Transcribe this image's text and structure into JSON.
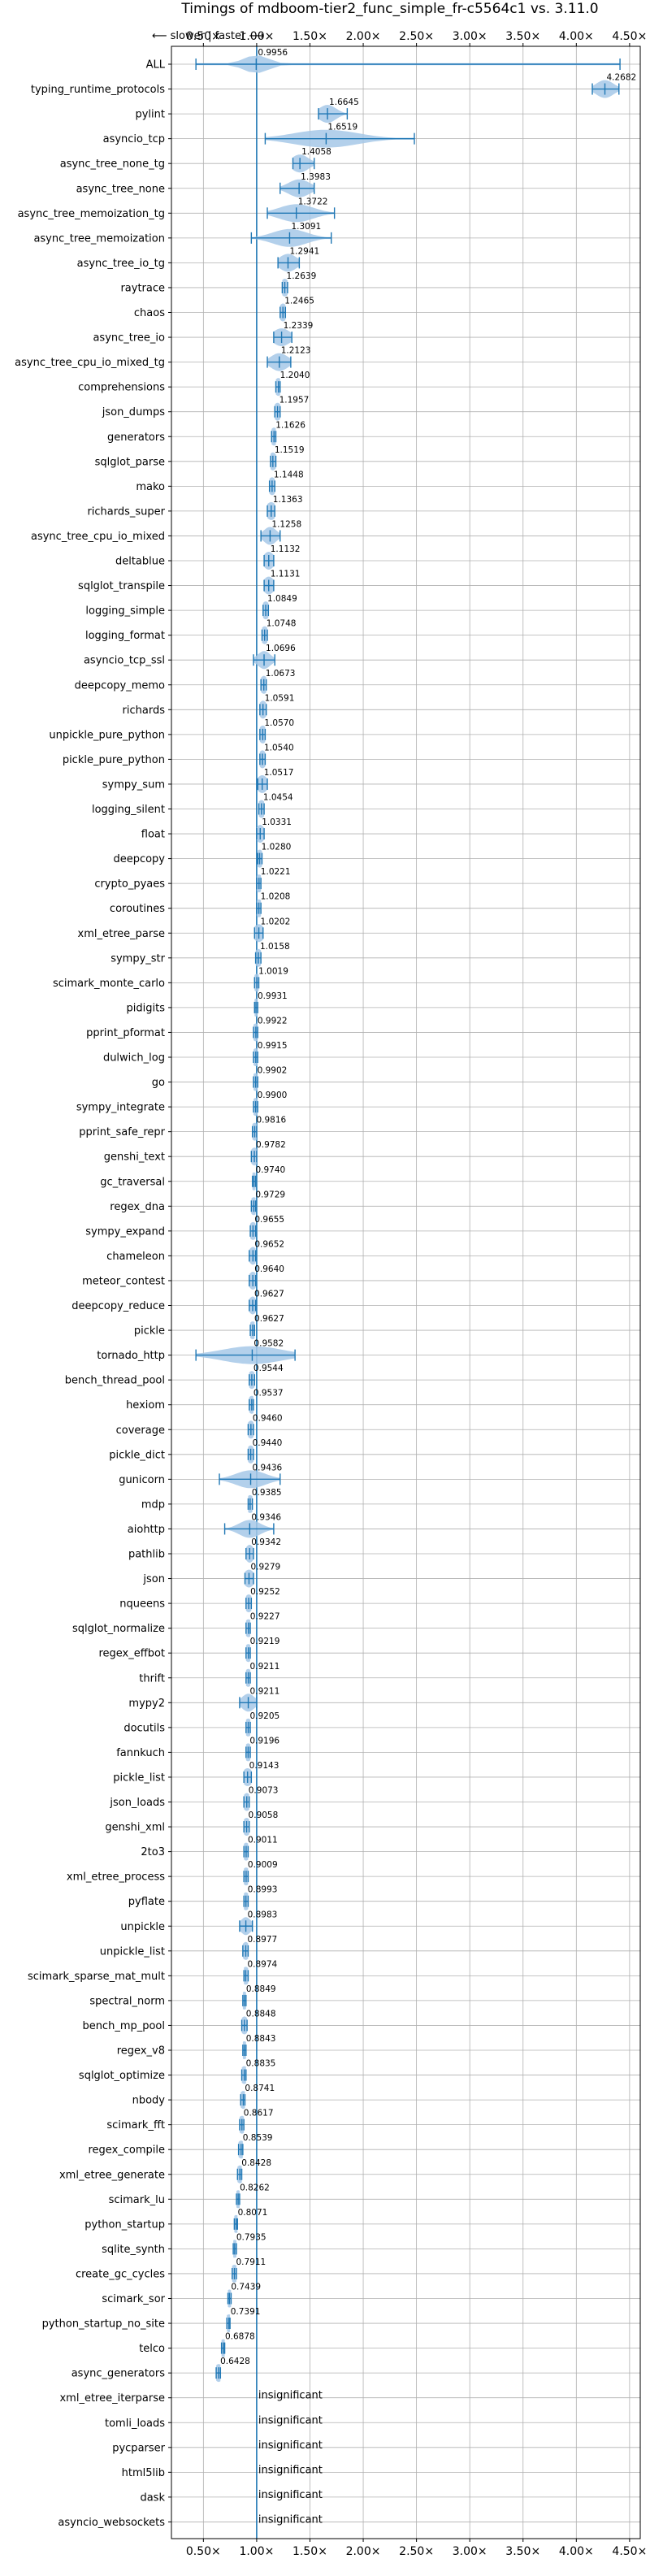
{
  "chart_data": {
    "type": "violin",
    "title": "Timings of mdboom-tier2_func_simple_fr-c5564c1 vs. 3.11.0",
    "direction_label": "⟵ slower | faster ⟶",
    "xlim": [
      0.2,
      4.6
    ],
    "x_ticks": [
      0.5,
      1.0,
      1.5,
      2.0,
      2.5,
      3.0,
      3.5,
      4.0,
      4.5
    ],
    "x_tick_labels": [
      "0.50×",
      "1.00×",
      "1.50×",
      "2.00×",
      "2.50×",
      "3.00×",
      "3.50×",
      "4.00×",
      "4.50×"
    ],
    "reference_line": 1.0,
    "colors": {
      "violin": "#a6c8e8",
      "accent": "#1f77b4",
      "grid": "#b0b0b0"
    },
    "insignificant_text": "insignificant",
    "benchmarks": [
      {
        "name": "ALL",
        "value": 0.9956,
        "label": "0.9956",
        "min": 0.43,
        "max": 4.41,
        "spread": 0.12
      },
      {
        "name": "typing_runtime_protocols",
        "value": 4.2682,
        "label": "4.2682",
        "min": 4.15,
        "max": 4.4,
        "spread": 0.08
      },
      {
        "name": "pylint",
        "value": 1.6645,
        "label": "1.6645",
        "min": 1.58,
        "max": 1.85,
        "spread": 0.08
      },
      {
        "name": "asyncio_tcp",
        "value": 1.6519,
        "label": "1.6519",
        "min": 1.08,
        "max": 2.48,
        "spread": 0.3
      },
      {
        "name": "async_tree_none_tg",
        "value": 1.4058,
        "label": "1.4058",
        "min": 1.34,
        "max": 1.54,
        "spread": 0.08
      },
      {
        "name": "async_tree_none",
        "value": 1.3983,
        "label": "1.3983",
        "min": 1.22,
        "max": 1.54,
        "spread": 0.1
      },
      {
        "name": "async_tree_memoization_tg",
        "value": 1.3722,
        "label": "1.3722",
        "min": 1.1,
        "max": 1.73,
        "spread": 0.16
      },
      {
        "name": "async_tree_memoization",
        "value": 1.3091,
        "label": "1.3091",
        "min": 0.95,
        "max": 1.7,
        "spread": 0.16
      },
      {
        "name": "async_tree_io_tg",
        "value": 1.2941,
        "label": "1.2941",
        "min": 1.2,
        "max": 1.4,
        "spread": 0.08
      },
      {
        "name": "raytrace",
        "value": 1.2639,
        "label": "1.2639",
        "min": 1.24,
        "max": 1.29,
        "spread": 0.04
      },
      {
        "name": "chaos",
        "value": 1.2465,
        "label": "1.2465",
        "min": 1.22,
        "max": 1.27,
        "spread": 0.04
      },
      {
        "name": "async_tree_io",
        "value": 1.2339,
        "label": "1.2339",
        "min": 1.16,
        "max": 1.33,
        "spread": 0.08
      },
      {
        "name": "async_tree_cpu_io_mixed_tg",
        "value": 1.2123,
        "label": "1.2123",
        "min": 1.1,
        "max": 1.32,
        "spread": 0.08
      },
      {
        "name": "comprehensions",
        "value": 1.204,
        "label": "1.2040",
        "min": 1.18,
        "max": 1.22,
        "spread": 0.04
      },
      {
        "name": "json_dumps",
        "value": 1.1957,
        "label": "1.1957",
        "min": 1.17,
        "max": 1.22,
        "spread": 0.04
      },
      {
        "name": "generators",
        "value": 1.1626,
        "label": "1.1626",
        "min": 1.14,
        "max": 1.18,
        "spread": 0.04
      },
      {
        "name": "sqlglot_parse",
        "value": 1.1519,
        "label": "1.1519",
        "min": 1.13,
        "max": 1.18,
        "spread": 0.04
      },
      {
        "name": "mako",
        "value": 1.1448,
        "label": "1.1448",
        "min": 1.12,
        "max": 1.17,
        "spread": 0.04
      },
      {
        "name": "richards_super",
        "value": 1.1363,
        "label": "1.1363",
        "min": 1.1,
        "max": 1.17,
        "spread": 0.05
      },
      {
        "name": "async_tree_cpu_io_mixed",
        "value": 1.1258,
        "label": "1.1258",
        "min": 1.04,
        "max": 1.22,
        "spread": 0.06
      },
      {
        "name": "deltablue",
        "value": 1.1132,
        "label": "1.1132",
        "min": 1.07,
        "max": 1.16,
        "spread": 0.05
      },
      {
        "name": "sqlglot_transpile",
        "value": 1.1131,
        "label": "1.1131",
        "min": 1.07,
        "max": 1.16,
        "spread": 0.05
      },
      {
        "name": "logging_simple",
        "value": 1.0849,
        "label": "1.0849",
        "min": 1.06,
        "max": 1.11,
        "spread": 0.04
      },
      {
        "name": "logging_format",
        "value": 1.0748,
        "label": "1.0748",
        "min": 1.05,
        "max": 1.1,
        "spread": 0.04
      },
      {
        "name": "asyncio_tcp_ssl",
        "value": 1.0696,
        "label": "1.0696",
        "min": 0.97,
        "max": 1.17,
        "spread": 0.06
      },
      {
        "name": "deepcopy_memo",
        "value": 1.0673,
        "label": "1.0673",
        "min": 1.04,
        "max": 1.09,
        "spread": 0.04
      },
      {
        "name": "richards",
        "value": 1.0591,
        "label": "1.0591",
        "min": 1.03,
        "max": 1.09,
        "spread": 0.04
      },
      {
        "name": "unpickle_pure_python",
        "value": 1.057,
        "label": "1.0570",
        "min": 1.03,
        "max": 1.08,
        "spread": 0.04
      },
      {
        "name": "pickle_pure_python",
        "value": 1.054,
        "label": "1.0540",
        "min": 1.03,
        "max": 1.08,
        "spread": 0.04
      },
      {
        "name": "sympy_sum",
        "value": 1.0517,
        "label": "1.0517",
        "min": 1.01,
        "max": 1.1,
        "spread": 0.05
      },
      {
        "name": "logging_silent",
        "value": 1.0454,
        "label": "1.0454",
        "min": 1.02,
        "max": 1.07,
        "spread": 0.04
      },
      {
        "name": "float",
        "value": 1.0331,
        "label": "1.0331",
        "min": 1.0,
        "max": 1.07,
        "spread": 0.04
      },
      {
        "name": "deepcopy",
        "value": 1.028,
        "label": "1.0280",
        "min": 1.01,
        "max": 1.05,
        "spread": 0.04
      },
      {
        "name": "crypto_pyaes",
        "value": 1.0221,
        "label": "1.0221",
        "min": 1.0,
        "max": 1.04,
        "spread": 0.04
      },
      {
        "name": "coroutines",
        "value": 1.0208,
        "label": "1.0208",
        "min": 1.0,
        "max": 1.04,
        "spread": 0.04
      },
      {
        "name": "xml_etree_parse",
        "value": 1.0202,
        "label": "1.0202",
        "min": 0.98,
        "max": 1.06,
        "spread": 0.05
      },
      {
        "name": "sympy_str",
        "value": 1.0158,
        "label": "1.0158",
        "min": 0.99,
        "max": 1.04,
        "spread": 0.04
      },
      {
        "name": "scimark_monte_carlo",
        "value": 1.0019,
        "label": "1.0019",
        "min": 0.98,
        "max": 1.02,
        "spread": 0.04
      },
      {
        "name": "pidigits",
        "value": 0.9931,
        "label": "0.9931",
        "min": 0.98,
        "max": 1.01,
        "spread": 0.04
      },
      {
        "name": "pprint_pformat",
        "value": 0.9922,
        "label": "0.9922",
        "min": 0.97,
        "max": 1.01,
        "spread": 0.04
      },
      {
        "name": "dulwich_log",
        "value": 0.9915,
        "label": "0.9915",
        "min": 0.97,
        "max": 1.01,
        "spread": 0.04
      },
      {
        "name": "go",
        "value": 0.9902,
        "label": "0.9902",
        "min": 0.97,
        "max": 1.01,
        "spread": 0.04
      },
      {
        "name": "sympy_integrate",
        "value": 0.99,
        "label": "0.9900",
        "min": 0.97,
        "max": 1.01,
        "spread": 0.04
      },
      {
        "name": "pprint_safe_repr",
        "value": 0.9816,
        "label": "0.9816",
        "min": 0.96,
        "max": 1.0,
        "spread": 0.04
      },
      {
        "name": "genshi_text",
        "value": 0.9782,
        "label": "0.9782",
        "min": 0.95,
        "max": 1.0,
        "spread": 0.04
      },
      {
        "name": "gc_traversal",
        "value": 0.974,
        "label": "0.9740",
        "min": 0.96,
        "max": 0.99,
        "spread": 0.04
      },
      {
        "name": "regex_dna",
        "value": 0.9729,
        "label": "0.9729",
        "min": 0.95,
        "max": 0.99,
        "spread": 0.04
      },
      {
        "name": "sympy_expand",
        "value": 0.9655,
        "label": "0.9655",
        "min": 0.94,
        "max": 0.99,
        "spread": 0.04
      },
      {
        "name": "chameleon",
        "value": 0.9652,
        "label": "0.9652",
        "min": 0.93,
        "max": 0.99,
        "spread": 0.04
      },
      {
        "name": "meteor_contest",
        "value": 0.964,
        "label": "0.9640",
        "min": 0.93,
        "max": 0.99,
        "spread": 0.04
      },
      {
        "name": "deepcopy_reduce",
        "value": 0.9627,
        "label": "0.9627",
        "min": 0.93,
        "max": 0.99,
        "spread": 0.04
      },
      {
        "name": "pickle",
        "value": 0.9627,
        "label": "0.9627",
        "min": 0.94,
        "max": 0.98,
        "spread": 0.04
      },
      {
        "name": "tornado_http",
        "value": 0.9582,
        "label": "0.9582",
        "min": 0.43,
        "max": 1.36,
        "spread": 0.28
      },
      {
        "name": "bench_thread_pool",
        "value": 0.9544,
        "label": "0.9544",
        "min": 0.93,
        "max": 0.98,
        "spread": 0.04
      },
      {
        "name": "hexiom",
        "value": 0.9537,
        "label": "0.9537",
        "min": 0.93,
        "max": 0.97,
        "spread": 0.04
      },
      {
        "name": "coverage",
        "value": 0.946,
        "label": "0.9460",
        "min": 0.92,
        "max": 0.97,
        "spread": 0.04
      },
      {
        "name": "pickle_dict",
        "value": 0.944,
        "label": "0.9440",
        "min": 0.92,
        "max": 0.97,
        "spread": 0.04
      },
      {
        "name": "gunicorn",
        "value": 0.9436,
        "label": "0.9436",
        "min": 0.65,
        "max": 1.22,
        "spread": 0.14
      },
      {
        "name": "mdp",
        "value": 0.9385,
        "label": "0.9385",
        "min": 0.92,
        "max": 0.96,
        "spread": 0.04
      },
      {
        "name": "aiohttp",
        "value": 0.9346,
        "label": "0.9346",
        "min": 0.7,
        "max": 1.16,
        "spread": 0.1
      },
      {
        "name": "pathlib",
        "value": 0.9342,
        "label": "0.9342",
        "min": 0.9,
        "max": 0.97,
        "spread": 0.04
      },
      {
        "name": "json",
        "value": 0.9279,
        "label": "0.9279",
        "min": 0.89,
        "max": 0.97,
        "spread": 0.05
      },
      {
        "name": "nqueens",
        "value": 0.9252,
        "label": "0.9252",
        "min": 0.9,
        "max": 0.95,
        "spread": 0.04
      },
      {
        "name": "sqlglot_normalize",
        "value": 0.9227,
        "label": "0.9227",
        "min": 0.9,
        "max": 0.94,
        "spread": 0.04
      },
      {
        "name": "regex_effbot",
        "value": 0.9219,
        "label": "0.9219",
        "min": 0.9,
        "max": 0.94,
        "spread": 0.04
      },
      {
        "name": "thrift",
        "value": 0.9211,
        "label": "0.9211",
        "min": 0.9,
        "max": 0.94,
        "spread": 0.04
      },
      {
        "name": "mypy2",
        "value": 0.9211,
        "label": "0.9211",
        "min": 0.84,
        "max": 1.0,
        "spread": 0.06
      },
      {
        "name": "docutils",
        "value": 0.9205,
        "label": "0.9205",
        "min": 0.9,
        "max": 0.94,
        "spread": 0.04
      },
      {
        "name": "fannkuch",
        "value": 0.9196,
        "label": "0.9196",
        "min": 0.9,
        "max": 0.94,
        "spread": 0.04
      },
      {
        "name": "pickle_list",
        "value": 0.9143,
        "label": "0.9143",
        "min": 0.88,
        "max": 0.95,
        "spread": 0.05
      },
      {
        "name": "json_loads",
        "value": 0.9073,
        "label": "0.9073",
        "min": 0.88,
        "max": 0.93,
        "spread": 0.04
      },
      {
        "name": "genshi_xml",
        "value": 0.9058,
        "label": "0.9058",
        "min": 0.88,
        "max": 0.93,
        "spread": 0.04
      },
      {
        "name": "2to3",
        "value": 0.9011,
        "label": "0.9011",
        "min": 0.88,
        "max": 0.92,
        "spread": 0.04
      },
      {
        "name": "xml_etree_process",
        "value": 0.9009,
        "label": "0.9009",
        "min": 0.88,
        "max": 0.92,
        "spread": 0.04
      },
      {
        "name": "pyflate",
        "value": 0.8993,
        "label": "0.8993",
        "min": 0.88,
        "max": 0.92,
        "spread": 0.04
      },
      {
        "name": "unpickle",
        "value": 0.8983,
        "label": "0.8983",
        "min": 0.84,
        "max": 0.96,
        "spread": 0.05
      },
      {
        "name": "unpickle_list",
        "value": 0.8977,
        "label": "0.8977",
        "min": 0.87,
        "max": 0.92,
        "spread": 0.04
      },
      {
        "name": "scimark_sparse_mat_mult",
        "value": 0.8974,
        "label": "0.8974",
        "min": 0.88,
        "max": 0.92,
        "spread": 0.04
      },
      {
        "name": "spectral_norm",
        "value": 0.8849,
        "label": "0.8849",
        "min": 0.87,
        "max": 0.9,
        "spread": 0.04
      },
      {
        "name": "bench_mp_pool",
        "value": 0.8848,
        "label": "0.8848",
        "min": 0.86,
        "max": 0.91,
        "spread": 0.04
      },
      {
        "name": "regex_v8",
        "value": 0.8843,
        "label": "0.8843",
        "min": 0.87,
        "max": 0.9,
        "spread": 0.04
      },
      {
        "name": "sqlglot_optimize",
        "value": 0.8835,
        "label": "0.8835",
        "min": 0.86,
        "max": 0.9,
        "spread": 0.04
      },
      {
        "name": "nbody",
        "value": 0.8741,
        "label": "0.8741",
        "min": 0.85,
        "max": 0.89,
        "spread": 0.04
      },
      {
        "name": "scimark_fft",
        "value": 0.8617,
        "label": "0.8617",
        "min": 0.84,
        "max": 0.88,
        "spread": 0.04
      },
      {
        "name": "regex_compile",
        "value": 0.8539,
        "label": "0.8539",
        "min": 0.83,
        "max": 0.87,
        "spread": 0.04
      },
      {
        "name": "xml_etree_generate",
        "value": 0.8428,
        "label": "0.8428",
        "min": 0.82,
        "max": 0.86,
        "spread": 0.04
      },
      {
        "name": "scimark_lu",
        "value": 0.8262,
        "label": "0.8262",
        "min": 0.81,
        "max": 0.84,
        "spread": 0.04
      },
      {
        "name": "python_startup",
        "value": 0.8071,
        "label": "0.8071",
        "min": 0.79,
        "max": 0.82,
        "spread": 0.04
      },
      {
        "name": "sqlite_synth",
        "value": 0.7935,
        "label": "0.7935",
        "min": 0.78,
        "max": 0.81,
        "spread": 0.04
      },
      {
        "name": "create_gc_cycles",
        "value": 0.7911,
        "label": "0.7911",
        "min": 0.77,
        "max": 0.81,
        "spread": 0.04
      },
      {
        "name": "scimark_sor",
        "value": 0.7439,
        "label": "0.7439",
        "min": 0.73,
        "max": 0.76,
        "spread": 0.04
      },
      {
        "name": "python_startup_no_site",
        "value": 0.7391,
        "label": "0.7391",
        "min": 0.72,
        "max": 0.75,
        "spread": 0.04
      },
      {
        "name": "telco",
        "value": 0.6878,
        "label": "0.6878",
        "min": 0.67,
        "max": 0.7,
        "spread": 0.04
      },
      {
        "name": "async_generators",
        "value": 0.6428,
        "label": "0.6428",
        "min": 0.62,
        "max": 0.66,
        "spread": 0.04
      },
      {
        "name": "xml_etree_iterparse",
        "value": null,
        "label": "insignificant"
      },
      {
        "name": "tomli_loads",
        "value": null,
        "label": "insignificant"
      },
      {
        "name": "pycparser",
        "value": null,
        "label": "insignificant"
      },
      {
        "name": "html5lib",
        "value": null,
        "label": "insignificant"
      },
      {
        "name": "dask",
        "value": null,
        "label": "insignificant"
      },
      {
        "name": "asyncio_websockets",
        "value": null,
        "label": "insignificant"
      }
    ]
  }
}
